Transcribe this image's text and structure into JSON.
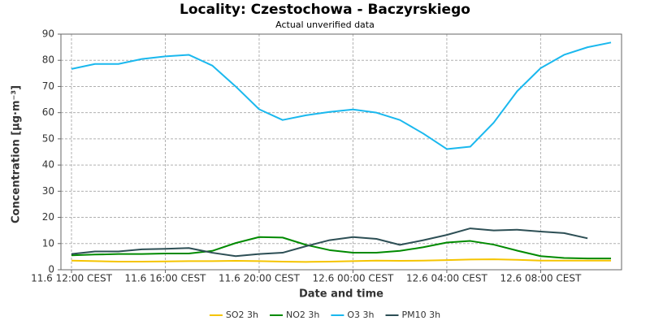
{
  "chart_data": {
    "type": "line",
    "title": "Locality: Czestochowa - Baczyrskiego",
    "subtitle": "Actual unverified data",
    "x_label": "Date and time",
    "y_label": "Concentration [µg·m⁻³]",
    "categories": [
      "11.6 12:00 CEST",
      null,
      null,
      null,
      "11.6 16:00 CEST",
      null,
      null,
      null,
      "11.6 20:00 CEST",
      null,
      null,
      null,
      "12.6 00:00 CEST",
      null,
      null,
      null,
      "12.6 04:00 CEST",
      null,
      null,
      null,
      "12.6 08:00 CEST",
      null,
      null,
      null
    ],
    "ylim": [
      0,
      90
    ],
    "yticks": [
      0,
      10,
      20,
      30,
      40,
      50,
      60,
      70,
      80,
      90
    ],
    "grid": true,
    "legend": "bottom",
    "series": [
      {
        "name": "SO2 3h",
        "color": "#f5c400",
        "values": [
          3.5,
          3.3,
          3.1,
          3.1,
          3.2,
          3.3,
          3.3,
          3.4,
          3.3,
          3.1,
          3.0,
          3.1,
          3.3,
          3.5,
          3.4,
          3.5,
          3.7,
          3.9,
          4.0,
          3.8,
          3.5,
          3.5,
          3.5,
          3.5
        ]
      },
      {
        "name": "NO2 3h",
        "color": "#008a00",
        "values": [
          5.5,
          5.8,
          6.0,
          6.0,
          6.2,
          6.2,
          7.2,
          10.2,
          12.5,
          12.3,
          9.5,
          7.5,
          6.5,
          6.5,
          7.2,
          8.6,
          10.4,
          11.0,
          9.6,
          7.3,
          5.2,
          4.5,
          4.3,
          4.3
        ]
      },
      {
        "name": "O3 3h",
        "color": "#1ab8ee",
        "values": [
          76.7,
          78.6,
          78.6,
          80.5,
          81.5,
          82.1,
          78.0,
          70.0,
          61.3,
          57.2,
          59.0,
          60.3,
          61.2,
          60.0,
          57.2,
          52.0,
          46.1,
          47.0,
          56.2,
          68.2,
          77.0,
          82.1,
          85.0,
          86.8
        ]
      },
      {
        "name": "PM10 3h",
        "color": "#2d4f55",
        "values": [
          6.0,
          7.0,
          7.0,
          7.8,
          8.0,
          8.3,
          6.5,
          5.2,
          6.0,
          6.5,
          9.0,
          11.3,
          12.5,
          11.8,
          9.5,
          11.3,
          13.3,
          15.8,
          15.0,
          15.3,
          14.6,
          14.0,
          12.0,
          null
        ]
      }
    ]
  }
}
